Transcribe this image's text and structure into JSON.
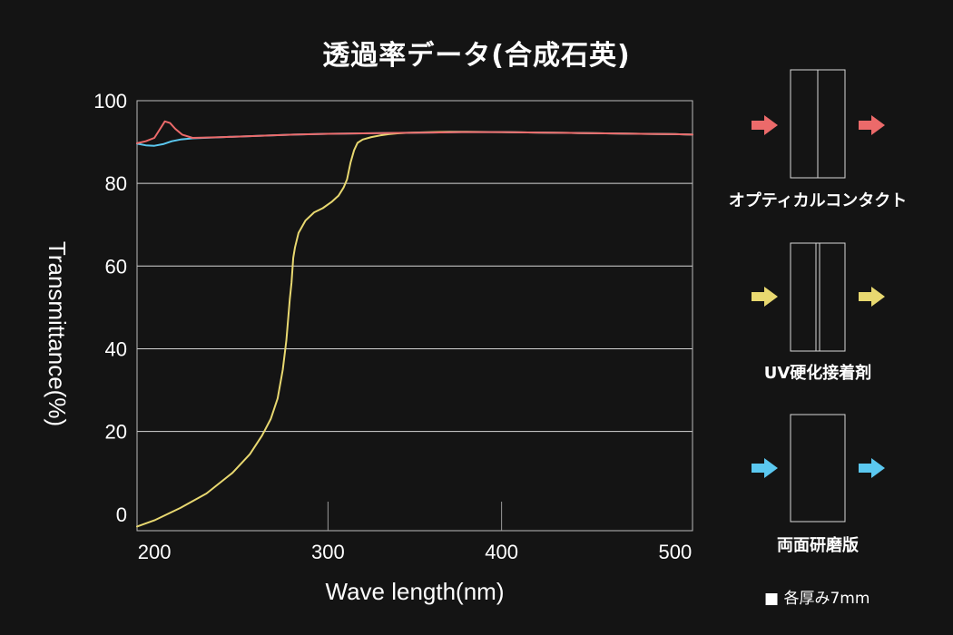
{
  "chart_data": {
    "type": "line",
    "title": "透過率データ(合成石英)",
    "xlabel": "Wave length(nm)",
    "ylabel": "Transmittance(%)",
    "xlim": [
      190,
      510
    ],
    "ylim": [
      -4,
      100
    ],
    "x_ticks": [
      200,
      300,
      400,
      500
    ],
    "y_ticks": [
      0,
      20,
      40,
      60,
      80,
      100
    ],
    "grid": "horizontal",
    "series": [
      {
        "name": "UV硬化接着剤",
        "color": "#e8d870",
        "x": [
          190,
          200,
          215,
          230,
          245,
          255,
          262,
          267,
          271,
          274,
          276,
          277,
          278,
          279,
          280,
          281,
          283,
          287,
          292,
          297,
          302,
          306,
          309,
          311,
          313,
          315,
          317,
          320,
          325,
          330,
          335,
          340,
          345,
          350,
          360,
          370,
          380,
          400,
          420,
          440,
          460,
          480,
          500,
          510
        ],
        "y": [
          -3,
          -1.5,
          1.5,
          5,
          10,
          14.5,
          19,
          23,
          28,
          35,
          42,
          47,
          52,
          56,
          62,
          64.5,
          68,
          71,
          73,
          74,
          75.5,
          77,
          79,
          81,
          85,
          88,
          89.8,
          90.6,
          91.2,
          91.6,
          91.9,
          92.1,
          92.2,
          92.3,
          92.4,
          92.5,
          92.5,
          92.4,
          92.3,
          92.2,
          92.1,
          92,
          91.9,
          91.8
        ]
      },
      {
        "name": "両面研磨版",
        "color": "#5bc8f0",
        "x": [
          190,
          195,
          200,
          205,
          210,
          215,
          222,
          240,
          260,
          280,
          300,
          320,
          340,
          360,
          380,
          400,
          420,
          440,
          460,
          480,
          500,
          510
        ],
        "y": [
          89.6,
          89.2,
          89.1,
          89.5,
          90.2,
          90.6,
          90.9,
          91.2,
          91.5,
          91.8,
          92,
          92.1,
          92.2,
          92.3,
          92.4,
          92.4,
          92.3,
          92.2,
          92.1,
          92,
          91.9,
          91.8
        ]
      },
      {
        "name": "オプティカルコンタクト",
        "color": "#ec6a6a",
        "x": [
          190,
          195,
          200,
          203,
          206,
          209,
          212,
          216,
          222,
          240,
          260,
          280,
          300,
          320,
          340,
          360,
          380,
          400,
          420,
          440,
          460,
          480,
          500,
          510
        ],
        "y": [
          89.7,
          90.2,
          91,
          93,
          95,
          94.6,
          93.2,
          91.8,
          91,
          91.2,
          91.5,
          91.8,
          92,
          92.1,
          92.2,
          92.3,
          92.4,
          92.4,
          92.3,
          92.2,
          92.1,
          92,
          91.9,
          91.8
        ]
      }
    ]
  },
  "diagrams": [
    {
      "label": "オプティカルコンタクト",
      "arrow_color": "#ec6a6a"
    },
    {
      "label": "UV硬化接着剤",
      "arrow_color": "#e8d870"
    },
    {
      "label": "両面研磨版",
      "arrow_color": "#5bc8f0"
    }
  ],
  "footnote": "■ 各厚み7mm"
}
